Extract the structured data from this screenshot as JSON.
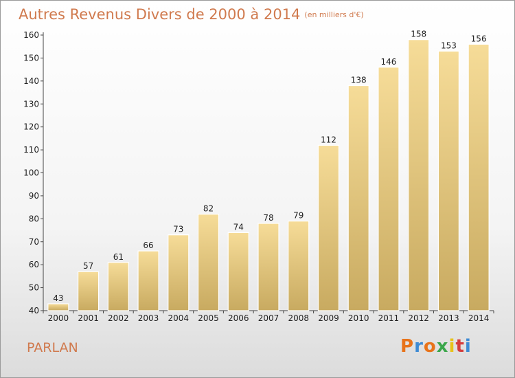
{
  "header": {
    "title": "Autres Revenus Divers de 2000 à 2014",
    "unit": "(en milliers d'€)"
  },
  "footer": {
    "place": "PARLAN",
    "brand_letters": [
      "P",
      "r",
      "o",
      "x",
      "i",
      "t",
      "i"
    ],
    "brand_colors": [
      "#e8731a",
      "#3d8bd4",
      "#e8731a",
      "#3aa64a",
      "#e8c21a",
      "#d43d3d",
      "#3d8bd4"
    ]
  },
  "chart_data": {
    "type": "bar",
    "title": "Autres Revenus Divers de 2000 à 2014",
    "subtitle": "(en milliers d'€)",
    "categories": [
      "2000",
      "2001",
      "2002",
      "2003",
      "2004",
      "2005",
      "2006",
      "2007",
      "2008",
      "2009",
      "2010",
      "2011",
      "2012",
      "2013",
      "2014"
    ],
    "values": [
      43,
      57,
      61,
      66,
      73,
      82,
      74,
      78,
      79,
      112,
      138,
      146,
      158,
      153,
      156
    ],
    "ylim": [
      40,
      160
    ],
    "yticks": [
      40,
      50,
      60,
      70,
      80,
      90,
      100,
      110,
      120,
      130,
      140,
      150,
      160
    ],
    "grid": false,
    "bar_color_top": "#f6dc98",
    "bar_color_bottom": "#c8aa60"
  }
}
